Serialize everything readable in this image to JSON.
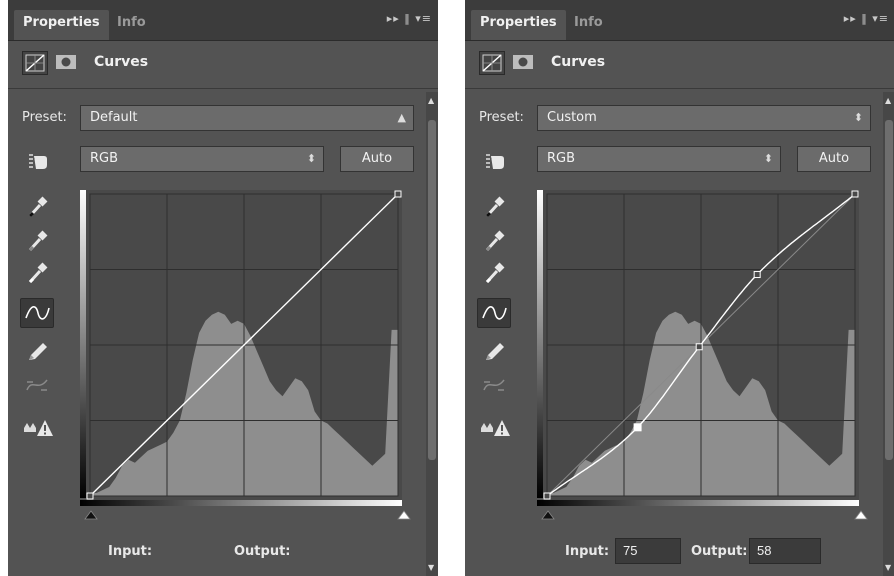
{
  "panels": [
    {
      "tabs": [
        {
          "label": "Properties"
        },
        {
          "label": "Info"
        }
      ],
      "tab_controls": "▸▸ ‖ ▾≡",
      "header": {
        "title": "Curves",
        "icons": [
          "curves-adjustment-icon",
          "layer-mask-icon"
        ]
      },
      "preset": {
        "label": "Preset:",
        "value": "Default"
      },
      "channel": {
        "value": "RGB"
      },
      "auto_label": "Auto",
      "tools": [
        "hand-target-icon",
        "black-point-eyedropper-icon",
        "gray-point-eyedropper-icon",
        "white-point-eyedropper-icon",
        "curve-point-tool-icon",
        "pencil-draw-icon",
        "smooth-curve-icon",
        "clipping-warning-icon"
      ],
      "input": {
        "label": "Input:",
        "value": ""
      },
      "output": {
        "label": "Output:",
        "value": ""
      },
      "curve_points": [
        [
          0,
          0
        ],
        [
          255,
          255
        ]
      ],
      "selected_point": -1
    },
    {
      "tabs": [
        {
          "label": "Properties"
        },
        {
          "label": "Info"
        }
      ],
      "tab_controls": "▸▸ ‖ ▾≡",
      "header": {
        "title": "Curves",
        "icons": [
          "curves-adjustment-icon",
          "layer-mask-icon"
        ]
      },
      "preset": {
        "label": "Preset:",
        "value": "Custom"
      },
      "channel": {
        "value": "RGB"
      },
      "auto_label": "Auto",
      "tools": [
        "hand-target-icon",
        "black-point-eyedropper-icon",
        "gray-point-eyedropper-icon",
        "white-point-eyedropper-icon",
        "curve-point-tool-icon",
        "pencil-draw-icon",
        "smooth-curve-icon",
        "clipping-warning-icon"
      ],
      "input": {
        "label": "Input:",
        "value": "75"
      },
      "output": {
        "label": "Output:",
        "value": "58"
      },
      "curve_points": [
        [
          0,
          0
        ],
        [
          75,
          58
        ],
        [
          126,
          126
        ],
        [
          174,
          187
        ],
        [
          255,
          255
        ]
      ],
      "selected_point": 1
    }
  ],
  "histogram": [
    0.01,
    0.01,
    0.02,
    0.03,
    0.06,
    0.1,
    0.12,
    0.11,
    0.13,
    0.15,
    0.16,
    0.17,
    0.18,
    0.21,
    0.25,
    0.34,
    0.45,
    0.54,
    0.58,
    0.6,
    0.61,
    0.6,
    0.57,
    0.58,
    0.57,
    0.53,
    0.48,
    0.43,
    0.38,
    0.35,
    0.33,
    0.36,
    0.39,
    0.38,
    0.35,
    0.28,
    0.25,
    0.24,
    0.22,
    0.2,
    0.18,
    0.16,
    0.14,
    0.12,
    0.1,
    0.12,
    0.14,
    0.55
  ],
  "colors": {
    "panel_bg": "#535353",
    "tab_bar": "#3c3c3c",
    "graph_bg": "#494949",
    "histogram": "#8e8e8e",
    "curve": "#ffffff"
  }
}
